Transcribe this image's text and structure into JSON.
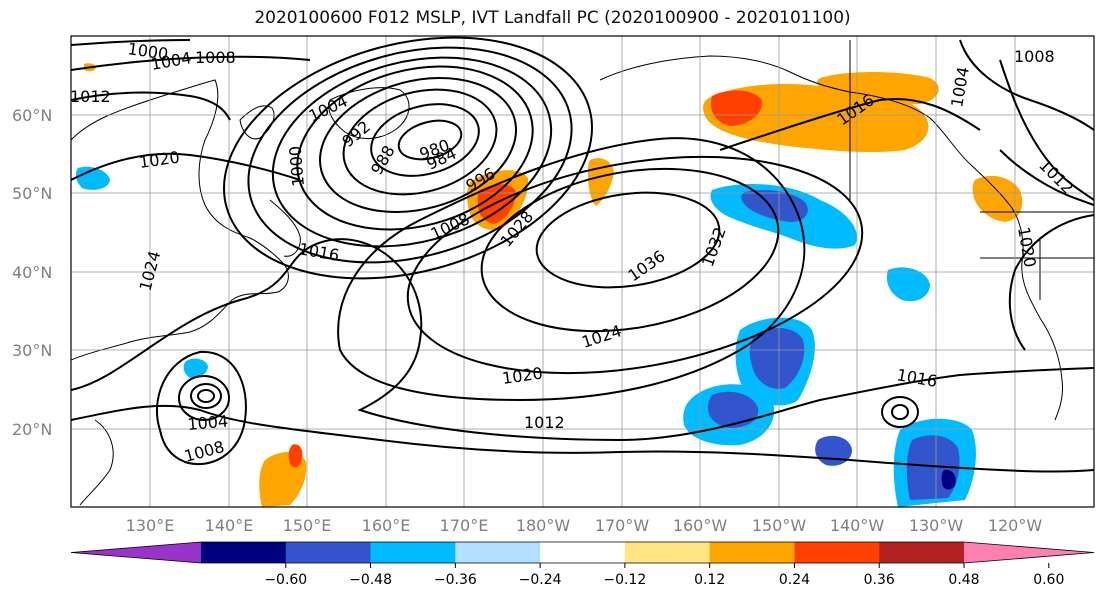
{
  "title": "2020100600 F012 MSLP, IVT Landfall PC (2020100900 - 2020101100)",
  "lat_labels": [
    "60°N",
    "50°N",
    "40°N",
    "30°N",
    "20°N"
  ],
  "lon_labels": [
    "130°E",
    "140°E",
    "150°E",
    "160°E",
    "170°E",
    "180°W",
    "170°W",
    "160°W",
    "150°W",
    "140°W",
    "130°W",
    "120°W"
  ],
  "isobar_labels": [
    "1000",
    "1004",
    "1008",
    "1012",
    "1020",
    "1004",
    "1000",
    "992",
    "988",
    "984",
    "980",
    "996",
    "1008",
    "1016",
    "1028",
    "1036",
    "1032",
    "1024",
    "1020",
    "1016",
    "1012",
    "1004",
    "1008",
    "1016",
    "1008",
    "1004",
    "1012",
    "1020",
    "1024"
  ],
  "colorbar": {
    "ticks": [
      "−0.60",
      "−0.48",
      "−0.36",
      "−0.24",
      "−0.12",
      "0.12",
      "0.24",
      "0.36",
      "0.48",
      "0.60"
    ],
    "colors": [
      "#9933cc",
      "#000080",
      "#3355cc",
      "#00bbff",
      "#b0e0ff",
      "#ffffff",
      "#ffe680",
      "#ffa500",
      "#ff4000",
      "#b22222",
      "#ff80b0"
    ]
  },
  "colors": {
    "neg_light": "#b0e0ff",
    "neg_mid": "#00bbff",
    "neg_strong": "#3355cc",
    "neg_max": "#000080",
    "pos_light": "#ffe680",
    "pos_mid": "#ffa500",
    "pos_strong": "#ff4000",
    "pos_max": "#b22222"
  }
}
